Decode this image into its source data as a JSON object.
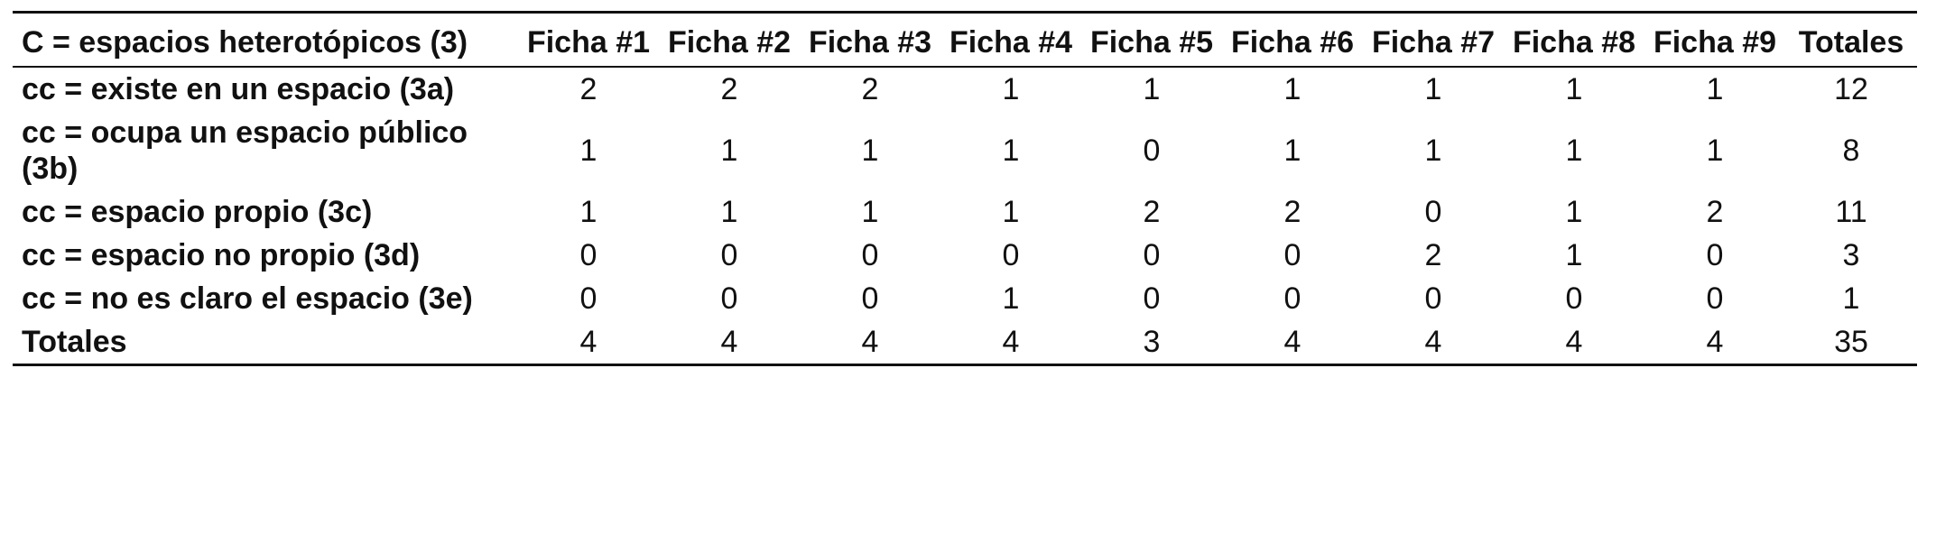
{
  "table": {
    "header": [
      "C = espacios heterotópicos (3)",
      "Ficha #1",
      "Ficha #2",
      "Ficha #3",
      "Ficha #4",
      "Ficha #5",
      "Ficha #6",
      "Ficha #7",
      "Ficha #8",
      "Ficha #9",
      "Totales"
    ],
    "rows": [
      [
        "cc = existe en un espacio (3a)",
        2,
        2,
        2,
        1,
        1,
        1,
        1,
        1,
        1,
        12
      ],
      [
        "cc = ocupa un espacio público (3b)",
        1,
        1,
        1,
        1,
        0,
        1,
        1,
        1,
        1,
        8
      ],
      [
        "cc = espacio propio (3c)",
        1,
        1,
        1,
        1,
        2,
        2,
        0,
        1,
        2,
        11
      ],
      [
        "cc = espacio no propio (3d)",
        0,
        0,
        0,
        0,
        0,
        0,
        2,
        1,
        0,
        3
      ],
      [
        "cc = no es claro el espacio (3e)",
        0,
        0,
        0,
        1,
        0,
        0,
        0,
        0,
        0,
        1
      ],
      [
        "Totales",
        4,
        4,
        4,
        4,
        3,
        4,
        4,
        4,
        4,
        35
      ]
    ]
  }
}
